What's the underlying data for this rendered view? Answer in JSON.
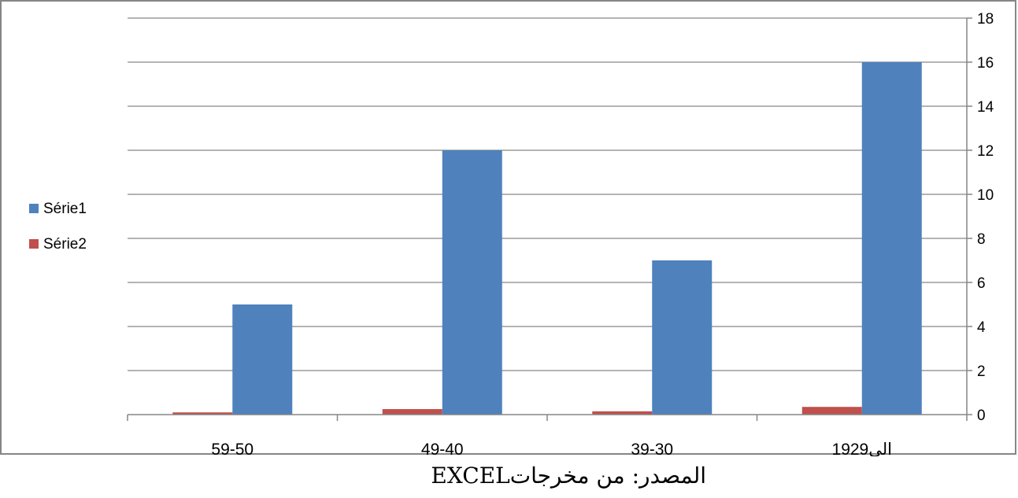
{
  "chart_data": {
    "type": "bar",
    "categories": [
      "59-50",
      "49-40",
      "39-30",
      "19الى29"
    ],
    "series": [
      {
        "name": "Série1",
        "values": [
          5,
          12,
          7,
          16
        ],
        "color": "#4F81BD"
      },
      {
        "name": "Série2",
        "values": [
          0.1,
          0.25,
          0.15,
          0.35
        ],
        "color": "#C0504D"
      }
    ],
    "y_ticks": [
      "0",
      "2",
      "4",
      "6",
      "8",
      "10",
      "12",
      "14",
      "16",
      "18"
    ],
    "ylim": [
      0,
      18
    ],
    "y_axis_side": "right",
    "grid": true,
    "legend_position": "left",
    "gridline_color": "#868686",
    "axis_color": "#868686"
  },
  "source_note": "المصدر: من مخرجاتEXCEL"
}
